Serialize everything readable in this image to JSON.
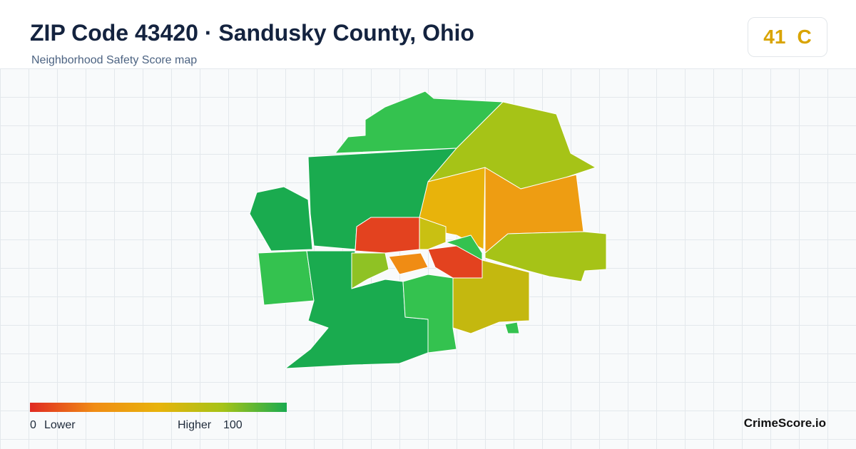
{
  "header": {
    "title": "ZIP Code 43420 · Sandusky County, Ohio",
    "subtitle": "Neighborhood Safety Score map"
  },
  "score": {
    "value": "41",
    "grade": "C"
  },
  "legend": {
    "min": "0",
    "min_label": "Lower",
    "max_label": "Higher",
    "max": "100"
  },
  "brand": "CrimeScore.io"
}
